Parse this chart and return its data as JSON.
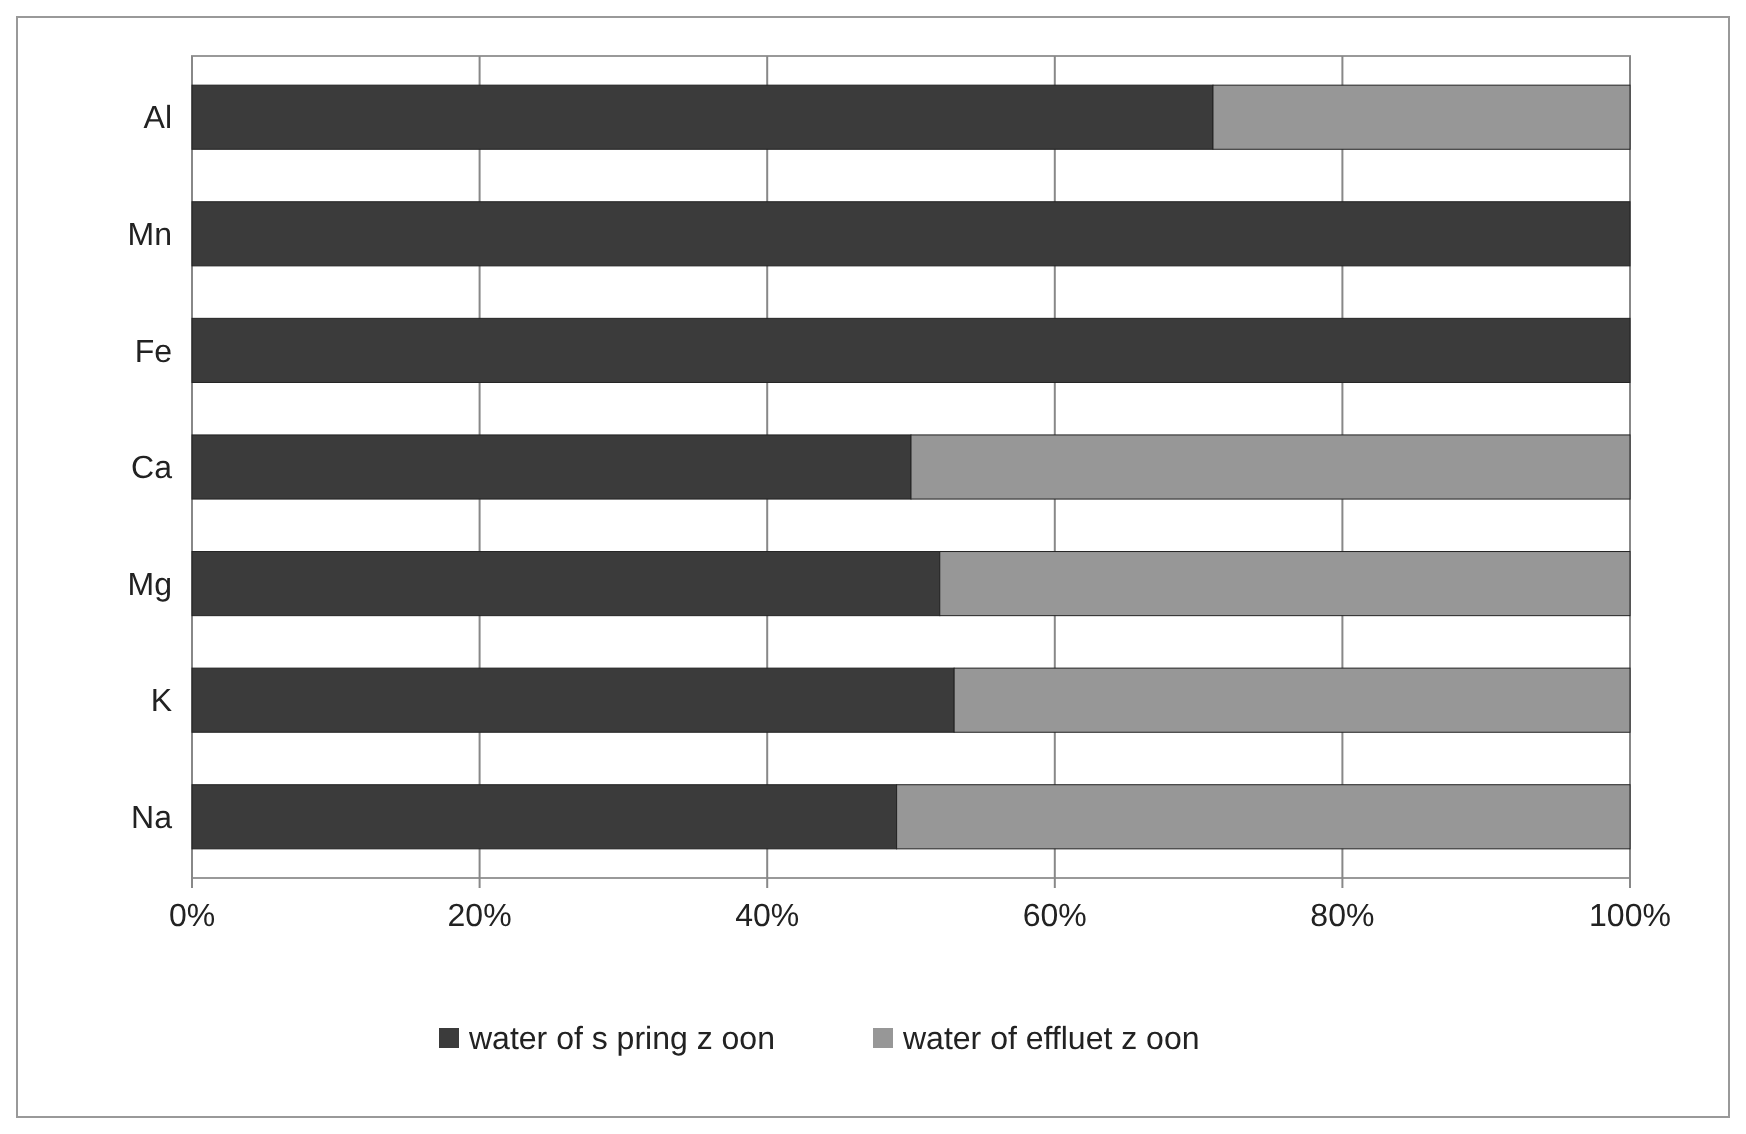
{
  "chart_data": {
    "type": "bar",
    "orientation": "horizontal",
    "stacked": true,
    "categories": [
      "Al",
      "Mn",
      "Fe",
      "Ca",
      "Mg",
      "K",
      "Na"
    ],
    "series": [
      {
        "name": "water of s pring z oon",
        "color": "#3b3b3b",
        "values": [
          71,
          100,
          100,
          50,
          52,
          53,
          49
        ]
      },
      {
        "name": "water of effluet z oon",
        "color": "#979797",
        "values": [
          29,
          0,
          0,
          50,
          48,
          47,
          51
        ]
      }
    ],
    "xlim": [
      0,
      100
    ],
    "xticks": [
      {
        "value": 0,
        "label": "0%"
      },
      {
        "value": 20,
        "label": "20%"
      },
      {
        "value": 40,
        "label": "40%"
      },
      {
        "value": 60,
        "label": "60%"
      },
      {
        "value": 80,
        "label": "80%"
      },
      {
        "value": 100,
        "label": "100%"
      }
    ],
    "grid": "x",
    "legend": "bottom"
  }
}
